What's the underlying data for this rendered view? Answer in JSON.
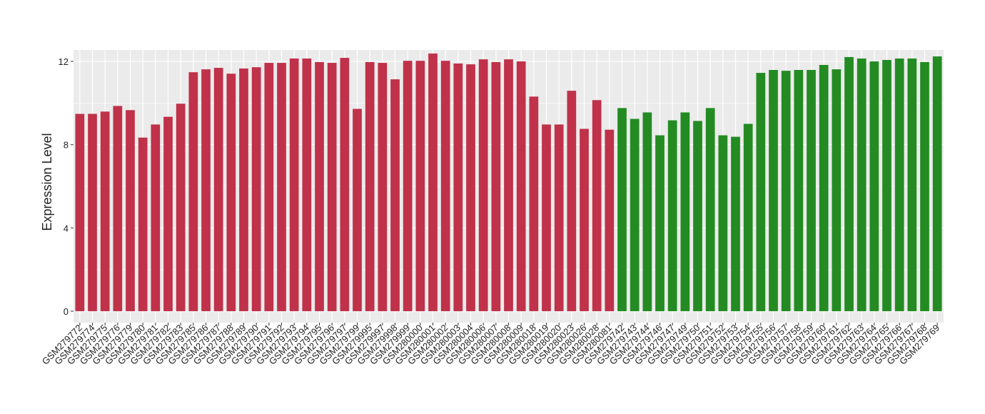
{
  "chart_data": {
    "type": "bar",
    "y_label": "Expression Level",
    "categories": [
      "GSM279772",
      "GSM279774",
      "GSM279775",
      "GSM279776",
      "GSM279779",
      "GSM279780",
      "GSM279781",
      "GSM279782",
      "GSM279783",
      "GSM279785",
      "GSM279786",
      "GSM279787",
      "GSM279788",
      "GSM279789",
      "GSM279790",
      "GSM279791",
      "GSM279792",
      "GSM279793",
      "GSM279794",
      "GSM279795",
      "GSM279796",
      "GSM279797",
      "GSM279799",
      "GSM279995",
      "GSM279997",
      "GSM279998",
      "GSM279999",
      "GSM280000",
      "GSM280001",
      "GSM280002",
      "GSM280003",
      "GSM280004",
      "GSM280006",
      "GSM280007",
      "GSM280008",
      "GSM280009",
      "GSM280018",
      "GSM280019",
      "GSM280020",
      "GSM280023",
      "GSM280026",
      "GSM280028",
      "GSM280081",
      "GSM279742",
      "GSM279743",
      "GSM279744",
      "GSM279746",
      "GSM279747",
      "GSM279749",
      "GSM279750",
      "GSM279751",
      "GSM279752",
      "GSM279753",
      "GSM279754",
      "GSM279755",
      "GSM279756",
      "GSM279757",
      "GSM279758",
      "GSM279759",
      "GSM279760",
      "GSM279761",
      "GSM279762",
      "GSM279763",
      "GSM279764",
      "GSM279765",
      "GSM279766",
      "GSM279767",
      "GSM279768",
      "GSM279769"
    ],
    "values": [
      9.48,
      9.48,
      9.59,
      9.86,
      9.66,
      8.34,
      8.97,
      9.34,
      9.97,
      11.48,
      11.62,
      11.69,
      11.41,
      11.66,
      11.72,
      11.93,
      11.93,
      12.14,
      12.14,
      11.97,
      11.93,
      12.17,
      9.72,
      11.97,
      11.93,
      11.14,
      12.03,
      12.03,
      12.38,
      12.03,
      11.9,
      11.86,
      12.1,
      11.97,
      12.1,
      12.0,
      10.31,
      8.97,
      8.97,
      10.59,
      8.76,
      10.14,
      8.72,
      9.76,
      9.24,
      9.55,
      8.45,
      9.17,
      9.55,
      9.14,
      9.76,
      8.45,
      8.38,
      9.0,
      11.45,
      11.59,
      11.55,
      11.59,
      11.59,
      11.83,
      11.62,
      12.21,
      12.14,
      12.0,
      12.07,
      12.14,
      12.14,
      11.97,
      12.24
    ],
    "colors": [
      "#c0314a",
      "#c0314a",
      "#c0314a",
      "#c0314a",
      "#c0314a",
      "#c0314a",
      "#c0314a",
      "#c0314a",
      "#c0314a",
      "#c0314a",
      "#c0314a",
      "#c0314a",
      "#c0314a",
      "#c0314a",
      "#c0314a",
      "#c0314a",
      "#c0314a",
      "#c0314a",
      "#c0314a",
      "#c0314a",
      "#c0314a",
      "#c0314a",
      "#c0314a",
      "#c0314a",
      "#c0314a",
      "#c0314a",
      "#c0314a",
      "#c0314a",
      "#c0314a",
      "#c0314a",
      "#c0314a",
      "#c0314a",
      "#c0314a",
      "#c0314a",
      "#c0314a",
      "#c0314a",
      "#c0314a",
      "#c0314a",
      "#c0314a",
      "#c0314a",
      "#c0314a",
      "#c0314a",
      "#c0314a",
      "#238b22",
      "#238b22",
      "#238b22",
      "#238b22",
      "#238b22",
      "#238b22",
      "#238b22",
      "#238b22",
      "#238b22",
      "#238b22",
      "#238b22",
      "#238b22",
      "#238b22",
      "#238b22",
      "#238b22",
      "#238b22",
      "#238b22",
      "#238b22",
      "#238b22",
      "#238b22",
      "#238b22",
      "#238b22",
      "#238b22",
      "#238b22",
      "#238b22",
      "#238b22"
    ],
    "ylim": [
      -0.55,
      12.55
    ],
    "yticks": [
      0,
      4,
      8,
      12
    ],
    "grid": true
  }
}
